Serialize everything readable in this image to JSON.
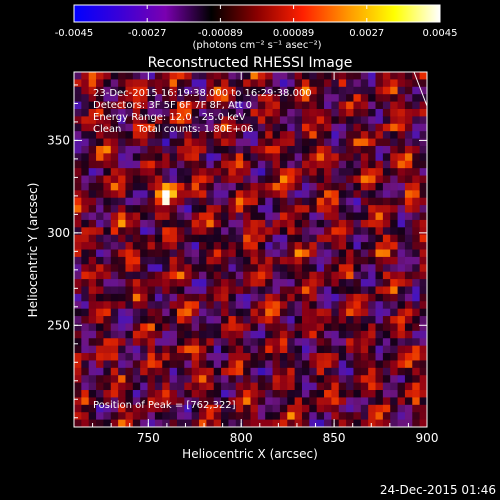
{
  "chart_data": {
    "type": "heatmap",
    "title": "Reconstructed RHESSI Image",
    "xlabel": "Heliocentric X (arcsec)",
    "ylabel": "Heliocentric Y (arcsec)",
    "xlim": [
      710,
      900
    ],
    "ylim": [
      195,
      387
    ],
    "x_ticks": [
      750,
      800,
      850,
      900
    ],
    "y_ticks": [
      250,
      300,
      350
    ],
    "colorbar": {
      "min": -0.0045,
      "max": 0.0045,
      "ticks": [
        "-0.0045",
        "-0.0027",
        "-0.00089",
        "0.00089",
        "0.0027",
        "0.0045"
      ],
      "unit_label": "(photons cm⁻² s⁻¹ asec⁻²)",
      "colors": [
        "#0000ff",
        "#3a00d8",
        "#7a00b0",
        "#000000",
        "#8a0000",
        "#ff2000",
        "#ff9800",
        "#ffff00",
        "#ffffff"
      ]
    },
    "annotations": {
      "time_range": "23-Dec-2015 16:19:38.000 to 16:29:38.000",
      "detectors": "Detectors: 3F 5F 6F 7F 8F, Att 0",
      "energy": "Energy Range: 12.0 - 25.0 keV",
      "method": "Clean     Total counts: 1.80E+06",
      "peak": "Position of Peak = [762,322]"
    },
    "peak": [
      762,
      322
    ]
  },
  "footer": {
    "timestamp": "24-Dec-2015 01:46"
  }
}
